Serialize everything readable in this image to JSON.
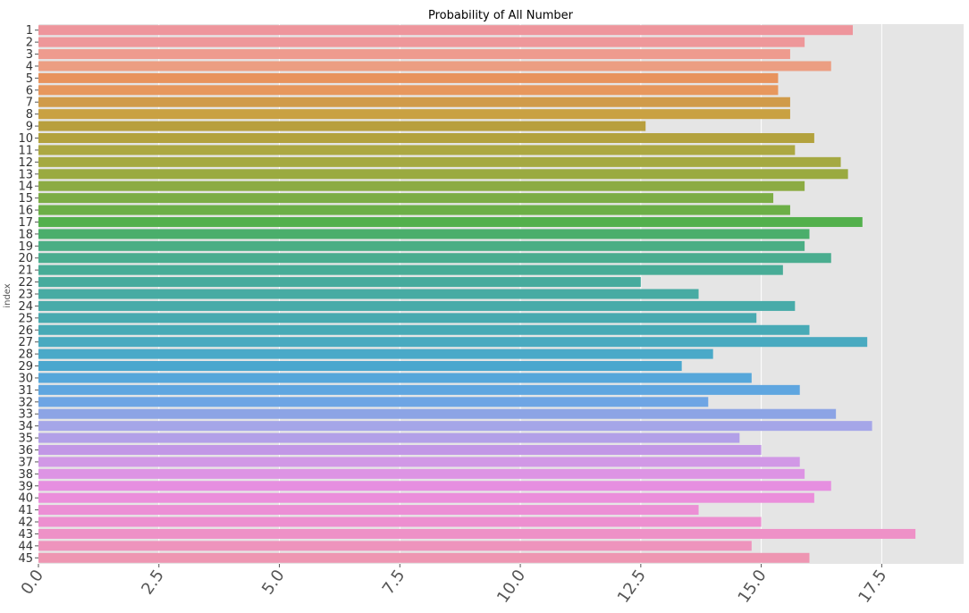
{
  "chart_data": {
    "type": "bar",
    "orientation": "horizontal",
    "title": "Probability of All Number",
    "xlabel": "",
    "ylabel": "index",
    "xlim": [
      0,
      19.2
    ],
    "xticks": [
      "0.0",
      "2.5",
      "5.0",
      "7.5",
      "10.0",
      "12.5",
      "15.0",
      "17.5"
    ],
    "grid": true,
    "categories": [
      "1",
      "2",
      "3",
      "4",
      "5",
      "6",
      "7",
      "8",
      "9",
      "10",
      "11",
      "12",
      "13",
      "14",
      "15",
      "16",
      "17",
      "18",
      "19",
      "20",
      "21",
      "22",
      "23",
      "24",
      "25",
      "26",
      "27",
      "28",
      "29",
      "30",
      "31",
      "32",
      "33",
      "34",
      "35",
      "36",
      "37",
      "38",
      "39",
      "40",
      "41",
      "42",
      "43",
      "44",
      "45"
    ],
    "values": [
      16.9,
      15.9,
      15.6,
      16.45,
      15.35,
      15.35,
      15.6,
      15.6,
      12.6,
      16.1,
      15.7,
      16.65,
      16.8,
      15.9,
      15.25,
      15.6,
      17.1,
      16.0,
      15.9,
      16.45,
      15.45,
      12.5,
      13.7,
      15.7,
      14.9,
      16.0,
      17.2,
      14.0,
      13.35,
      14.8,
      15.8,
      13.9,
      16.55,
      17.3,
      14.55,
      15.0,
      15.8,
      15.9,
      16.45,
      16.1,
      13.7,
      15.0,
      18.2,
      14.8,
      16.0
    ],
    "colors": [
      "#ee959c",
      "#ee979a",
      "#ee9b8e",
      "#ec9e82",
      "#e8935d",
      "#e7975d",
      "#d09b4a",
      "#c9a142",
      "#b89f3e",
      "#b3a23d",
      "#aca842",
      "#a5a942",
      "#9aaa40",
      "#8cab43",
      "#7dad45",
      "#6caf47",
      "#53b04c",
      "#4aae6b",
      "#4aae84",
      "#4aad8f",
      "#48ac97",
      "#47ab9d",
      "#47aba3",
      "#48aba9",
      "#48aab0",
      "#48aab6",
      "#49aac0",
      "#4aa9c8",
      "#4aa7ce",
      "#56a7da",
      "#5fa6e0",
      "#6ea5e4",
      "#8ca4e5",
      "#a5a6e8",
      "#b2a0e8",
      "#c297e6",
      "#d198e6",
      "#dd94e4",
      "#e68fe0",
      "#eb8edb",
      "#ec8fd5",
      "#ed8fd0",
      "#ee91c7",
      "#ee94bd",
      "#ee96b2"
    ]
  }
}
